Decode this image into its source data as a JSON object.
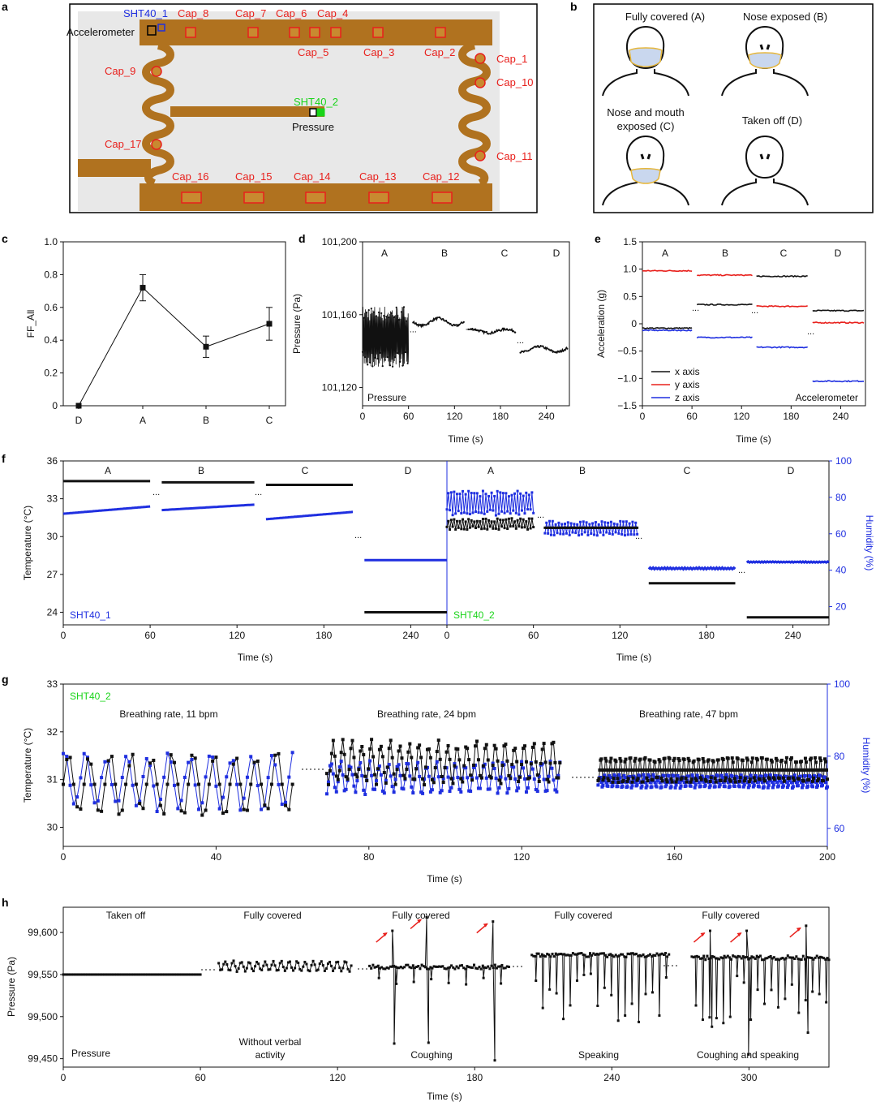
{
  "colors": {
    "black": "#111111",
    "red": "#e8201c",
    "blue": "#1f2fe0",
    "green": "#19d419",
    "pcb": "#b0721f",
    "pcb_light": "#c88a30",
    "mask": "#c9d7ee",
    "mask_border": "#e6b63a"
  },
  "panel_letters": {
    "a": "a",
    "b": "b",
    "c": "c",
    "d": "d",
    "e": "e",
    "f": "f",
    "g": "g",
    "h": "h"
  },
  "panel_a": {
    "sensor_labels": {
      "sht40_1": "SHT40_1",
      "sht40_2": "SHT40_2",
      "accelerometer": "Accelerometer",
      "pressure": "Pressure"
    },
    "cap_labels": {
      "cap_1": "Cap_1",
      "cap_2": "Cap_2",
      "cap_3": "Cap_3",
      "cap_4": "Cap_4",
      "cap_5": "Cap_5",
      "cap_6": "Cap_6",
      "cap_7": "Cap_7",
      "cap_8": "Cap_8",
      "cap_9": "Cap_9",
      "cap_10": "Cap_10",
      "cap_11": "Cap_11",
      "cap_12": "Cap_12",
      "cap_13": "Cap_13",
      "cap_14": "Cap_14",
      "cap_15": "Cap_15",
      "cap_16": "Cap_16",
      "cap_17": "Cap_17"
    }
  },
  "panel_b": {
    "states": {
      "A": "Fully covered (A)",
      "B": "Nose exposed (B)",
      "C_line1": "Nose and mouth",
      "C_line2": "exposed (C)",
      "D": "Taken off (D)"
    }
  },
  "chart_data": [
    {
      "panel": "c",
      "type": "line",
      "categories": [
        "D",
        "A",
        "B",
        "C"
      ],
      "values": [
        0.0,
        0.72,
        0.36,
        0.5
      ],
      "error": [
        0.0,
        0.08,
        0.065,
        0.1
      ],
      "ylabel": "FF_All",
      "ylim": [
        0,
        1.0
      ],
      "yticks": [
        "0",
        "0.2",
        "0.4",
        "0.6",
        "0.8",
        "1.0"
      ]
    },
    {
      "panel": "d",
      "type": "line",
      "xlabel": "Time (s)",
      "ylabel": "Pressure (Pa)",
      "xlim": [
        0,
        270
      ],
      "ylim": [
        101110,
        101200
      ],
      "xticks": [
        "0",
        "60",
        "120",
        "180",
        "240"
      ],
      "yticks": [
        "101,120",
        "101,160",
        "101,200"
      ],
      "segment_labels": [
        "A",
        "B",
        "C",
        "D"
      ],
      "annotation": "Pressure",
      "segments": [
        {
          "label": "A",
          "x": [
            0,
            60
          ],
          "mean": 101148,
          "amplitude": 17
        },
        {
          "label": "B",
          "x": [
            66,
            133
          ],
          "mean": 101156,
          "amplitude": 2
        },
        {
          "label": "C",
          "x": [
            138,
            200
          ],
          "mean": 101151,
          "amplitude": 1
        },
        {
          "label": "D",
          "x": [
            206,
            268
          ],
          "mean": 101141,
          "amplitude": 1.5
        }
      ]
    },
    {
      "panel": "e",
      "type": "line",
      "xlabel": "Time (s)",
      "ylabel": "Acceleration (g)",
      "xlim": [
        0,
        270
      ],
      "ylim": [
        -1.5,
        1.5
      ],
      "xticks": [
        "0",
        "60",
        "120",
        "180",
        "240"
      ],
      "yticks": [
        "−1.5",
        "−1.0",
        "−0.5",
        "0",
        "0.5",
        "1.0",
        "1.5"
      ],
      "segment_labels": [
        "A",
        "B",
        "C",
        "D"
      ],
      "annotation": "Accelerometer",
      "legend": [
        "x axis",
        "y axis",
        "z axis"
      ],
      "series": [
        {
          "name": "x axis",
          "values": [
            -0.08,
            0.35,
            0.87,
            0.24
          ]
        },
        {
          "name": "y axis",
          "values": [
            0.97,
            0.89,
            0.32,
            0.02
          ]
        },
        {
          "name": "z axis",
          "values": [
            -0.12,
            -0.25,
            -0.43,
            -1.05
          ]
        }
      ],
      "segment_x": [
        [
          0,
          60
        ],
        [
          66,
          133
        ],
        [
          138,
          200
        ],
        [
          206,
          268
        ]
      ]
    },
    {
      "panel": "f",
      "type": "line",
      "xlabel": "Time (s)",
      "ylabel_left": "Temperature (°C)",
      "ylabel_right": "Humidity (%)",
      "ylim_left": [
        23,
        36
      ],
      "ylim_right": [
        10,
        100
      ],
      "xlim": [
        0,
        265
      ],
      "xticks": [
        "0",
        "60",
        "120",
        "180",
        "240"
      ],
      "yticks_left": [
        "24",
        "27",
        "30",
        "33",
        "36"
      ],
      "yticks_right": [
        "20",
        "40",
        "60",
        "80",
        "100"
      ],
      "segment_labels": [
        "A",
        "B",
        "C",
        "D"
      ],
      "sub_panels": [
        {
          "sensor": "SHT40_1",
          "temperature": [
            34.4,
            34.3,
            34.1,
            24.0
          ],
          "temperature_amp": [
            0,
            0,
            0,
            0
          ],
          "humidity_start": [
            71,
            73,
            68,
            45.5
          ],
          "humidity_end": [
            75,
            76,
            72,
            45.5
          ],
          "humidity_amp": [
            0,
            0,
            0,
            0
          ]
        },
        {
          "sensor": "SHT40_2",
          "temperature": [
            31.0,
            30.7,
            26.3,
            23.6
          ],
          "temperature_amp": [
            0.45,
            0,
            0,
            0
          ],
          "humidity_start": [
            77,
            63,
            41,
            44.5
          ],
          "humidity_end": [
            77,
            63,
            41,
            44.5
          ],
          "humidity_amp": [
            7,
            4,
            0.5,
            0.3
          ]
        }
      ],
      "segment_x": [
        [
          0,
          60
        ],
        [
          68,
          132
        ],
        [
          140,
          200
        ],
        [
          208,
          265
        ]
      ]
    },
    {
      "panel": "g",
      "type": "line",
      "sensor": "SHT40_2",
      "xlabel": "Time (s)",
      "ylabel_left": "Temperature (°C)",
      "ylabel_right": "Humidity (%)",
      "xlim": [
        0,
        200
      ],
      "ylim_left": [
        29.6,
        33
      ],
      "ylim_right": [
        55,
        100
      ],
      "xticks": [
        "0",
        "40",
        "80",
        "120",
        "160",
        "200"
      ],
      "yticks_left": [
        "30",
        "31",
        "32",
        "33"
      ],
      "yticks_right": [
        "60",
        "80",
        "100"
      ],
      "annotations": [
        "Breathing rate, 11 bpm",
        "Breathing rate, 24 bpm",
        "Breathing rate, 47 bpm"
      ],
      "segments": [
        {
          "x": [
            0,
            60
          ],
          "bpm": 11,
          "temp_mean": 30.9,
          "temp_amp": 0.75,
          "hum_mean": 73,
          "hum_amp": 9
        },
        {
          "x": [
            69,
            130
          ],
          "bpm": 24,
          "temp_mean": 31.35,
          "temp_amp": 0.5,
          "hum_mean": 74,
          "hum_amp": 5
        },
        {
          "x": [
            140,
            200
          ],
          "bpm": 47,
          "temp_mean": 31.2,
          "temp_amp": 0.3,
          "hum_mean": 73,
          "hum_amp": 2
        }
      ]
    },
    {
      "panel": "h",
      "type": "line",
      "xlabel": "Time (s)",
      "ylabel": "Pressure (Pa)",
      "xlim": [
        0,
        335
      ],
      "ylim": [
        99440,
        99630
      ],
      "xticks": [
        "0",
        "60",
        "120",
        "180",
        "240",
        "300"
      ],
      "yticks": [
        "99,450",
        "99,500",
        "99,550",
        "99,600"
      ],
      "top_labels": [
        "Taken off",
        "Fully covered",
        "Fully covered",
        "Fully covered",
        "Fully covered"
      ],
      "bottom_labels": [
        "Pressure",
        "Without verbal",
        "activity",
        "Coughing",
        "Speaking",
        "Coughing and speaking"
      ],
      "segments": [
        {
          "x": [
            0,
            60
          ],
          "mean": 99550,
          "kind": "flat"
        },
        {
          "x": [
            68,
            126
          ],
          "mean": 99560,
          "kind": "breath"
        },
        {
          "x": [
            134,
            195
          ],
          "mean": 99559,
          "kind": "cough",
          "events": [
            {
              "x": 144,
              "low": 99468,
              "high": 99602
            },
            {
              "x": 159,
              "low": 99469,
              "high": 99618
            },
            {
              "x": 188,
              "low": 99448,
              "high": 99613
            }
          ]
        },
        {
          "x": [
            205,
            265
          ],
          "mean": 99573,
          "kind": "speak"
        },
        {
          "x": [
            275,
            335
          ],
          "mean": 99570,
          "kind": "cough_speak",
          "events": [
            {
              "x": 283,
              "low": 99488,
              "high": 99602
            },
            {
              "x": 299,
              "low": 99455,
              "high": 99602
            },
            {
              "x": 325,
              "low": 99481,
              "high": 99608
            }
          ]
        }
      ]
    }
  ]
}
